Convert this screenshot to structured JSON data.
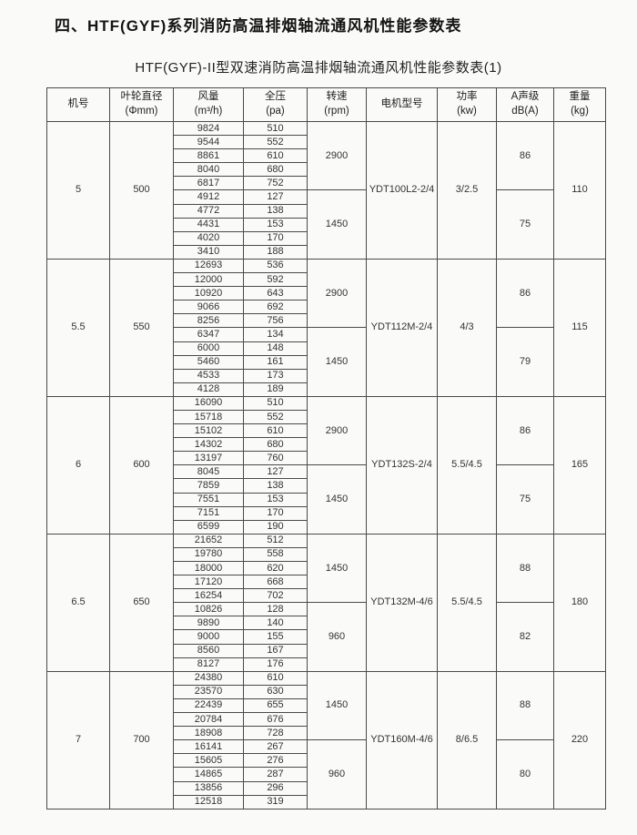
{
  "page": {
    "title": "四、HTF(GYF)系列消防高温排烟轴流通风机性能参数表",
    "subtitle": "HTF(GYF)-II型双速消防高温排烟轴流通风机性能参数表(1)"
  },
  "table": {
    "columns": [
      {
        "key": "model-no",
        "label": "机号",
        "sub": ""
      },
      {
        "key": "impeller-diameter",
        "label": "叶轮直径",
        "sub": "(Φmm)"
      },
      {
        "key": "air-volume",
        "label": "风量",
        "sub": "(m³/h)"
      },
      {
        "key": "total-pressure",
        "label": "全压",
        "sub": "(pa)"
      },
      {
        "key": "speed",
        "label": "转速",
        "sub": "(rpm)"
      },
      {
        "key": "motor-model",
        "label": "电机型号",
        "sub": ""
      },
      {
        "key": "power",
        "label": "功率",
        "sub": "(kw)"
      },
      {
        "key": "noise-level",
        "label": "A声级",
        "sub": "dB(A)"
      },
      {
        "key": "weight",
        "label": "重量",
        "sub": "(kg)"
      }
    ],
    "groups": [
      {
        "model_no": "5",
        "impeller_diameter": "500",
        "motor_model": "YDT100L2-2/4",
        "power": "3/2.5",
        "weight": "110",
        "speed_sections": [
          {
            "speed": "2900",
            "noise": "86",
            "rows": [
              [
                "9824",
                "510"
              ],
              [
                "9544",
                "552"
              ],
              [
                "8861",
                "610"
              ],
              [
                "8040",
                "680"
              ],
              [
                "6817",
                "752"
              ]
            ]
          },
          {
            "speed": "1450",
            "noise": "75",
            "rows": [
              [
                "4912",
                "127"
              ],
              [
                "4772",
                "138"
              ],
              [
                "4431",
                "153"
              ],
              [
                "4020",
                "170"
              ],
              [
                "3410",
                "188"
              ]
            ]
          }
        ]
      },
      {
        "model_no": "5.5",
        "impeller_diameter": "550",
        "motor_model": "YDT112M-2/4",
        "power": "4/3",
        "weight": "115",
        "speed_sections": [
          {
            "speed": "2900",
            "noise": "86",
            "rows": [
              [
                "12693",
                "536"
              ],
              [
                "12000",
                "592"
              ],
              [
                "10920",
                "643"
              ],
              [
                "9066",
                "692"
              ],
              [
                "8256",
                "756"
              ]
            ]
          },
          {
            "speed": "1450",
            "noise": "79",
            "rows": [
              [
                "6347",
                "134"
              ],
              [
                "6000",
                "148"
              ],
              [
                "5460",
                "161"
              ],
              [
                "4533",
                "173"
              ],
              [
                "4128",
                "189"
              ]
            ]
          }
        ]
      },
      {
        "model_no": "6",
        "impeller_diameter": "600",
        "motor_model": "YDT132S-2/4",
        "power": "5.5/4.5",
        "weight": "165",
        "speed_sections": [
          {
            "speed": "2900",
            "noise": "86",
            "rows": [
              [
                "16090",
                "510"
              ],
              [
                "15718",
                "552"
              ],
              [
                "15102",
                "610"
              ],
              [
                "14302",
                "680"
              ],
              [
                "13197",
                "760"
              ]
            ]
          },
          {
            "speed": "1450",
            "noise": "75",
            "rows": [
              [
                "8045",
                "127"
              ],
              [
                "7859",
                "138"
              ],
              [
                "7551",
                "153"
              ],
              [
                "7151",
                "170"
              ],
              [
                "6599",
                "190"
              ]
            ]
          }
        ]
      },
      {
        "model_no": "6.5",
        "impeller_diameter": "650",
        "motor_model": "YDT132M-4/6",
        "power": "5.5/4.5",
        "weight": "180",
        "speed_sections": [
          {
            "speed": "1450",
            "noise": "88",
            "rows": [
              [
                "21652",
                "512"
              ],
              [
                "19780",
                "558"
              ],
              [
                "18000",
                "620"
              ],
              [
                "17120",
                "668"
              ],
              [
                "16254",
                "702"
              ]
            ]
          },
          {
            "speed": "960",
            "noise": "82",
            "rows": [
              [
                "10826",
                "128"
              ],
              [
                "9890",
                "140"
              ],
              [
                "9000",
                "155"
              ],
              [
                "8560",
                "167"
              ],
              [
                "8127",
                "176"
              ]
            ]
          }
        ]
      },
      {
        "model_no": "7",
        "impeller_diameter": "700",
        "motor_model": "YDT160M-4/6",
        "power": "8/6.5",
        "weight": "220",
        "speed_sections": [
          {
            "speed": "1450",
            "noise": "88",
            "rows": [
              [
                "24380",
                "610"
              ],
              [
                "23570",
                "630"
              ],
              [
                "22439",
                "655"
              ],
              [
                "20784",
                "676"
              ],
              [
                "18908",
                "728"
              ]
            ]
          },
          {
            "speed": "960",
            "noise": "80",
            "rows": [
              [
                "16141",
                "267"
              ],
              [
                "15605",
                "276"
              ],
              [
                "14865",
                "287"
              ],
              [
                "13856",
                "296"
              ],
              [
                "12518",
                "319"
              ]
            ]
          }
        ]
      }
    ]
  }
}
